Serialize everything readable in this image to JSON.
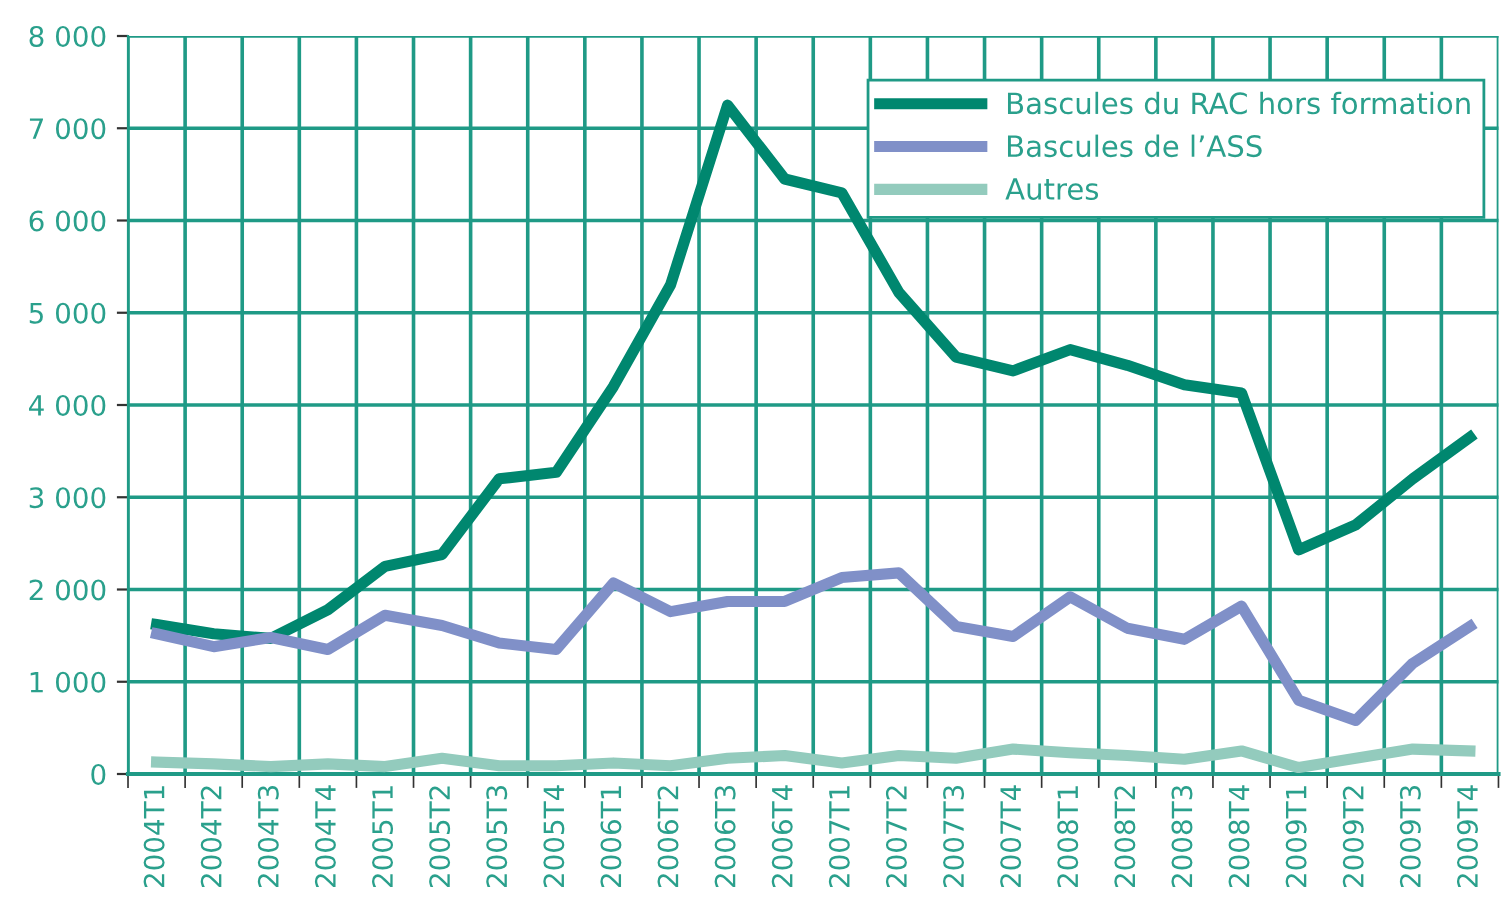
{
  "chart_data": {
    "type": "line",
    "categories": [
      "2004T1",
      "2004T2",
      "2004T3",
      "2004T4",
      "2005T1",
      "2005T2",
      "2005T3",
      "2005T4",
      "2006T1",
      "2006T2",
      "2006T3",
      "2006T4",
      "2007T1",
      "2007T2",
      "2007T3",
      "2007T4",
      "2008T1",
      "2008T2",
      "2008T3",
      "2008T4",
      "2009T1",
      "2009T2",
      "2009T3",
      "2009T4"
    ],
    "series": [
      {
        "name": "Bascules du RAC hors formation",
        "color": "#00876f",
        "values": [
          1620,
          1520,
          1470,
          1780,
          2250,
          2380,
          3200,
          3270,
          4200,
          5300,
          7250,
          6450,
          6300,
          5220,
          4520,
          4370,
          4600,
          4430,
          4220,
          4130,
          2430,
          2700,
          3200,
          3650
        ]
      },
      {
        "name": "Bascules de l’ASS",
        "color": "#8090c8",
        "values": [
          1520,
          1380,
          1480,
          1350,
          1720,
          1610,
          1420,
          1350,
          2070,
          1760,
          1870,
          1870,
          2130,
          2180,
          1600,
          1490,
          1920,
          1580,
          1460,
          1820,
          800,
          580,
          1200,
          1600
        ]
      },
      {
        "name": "Autres",
        "color": "#93cbbd",
        "values": [
          130,
          110,
          80,
          110,
          80,
          170,
          90,
          90,
          120,
          90,
          170,
          200,
          120,
          200,
          170,
          270,
          230,
          200,
          160,
          250,
          70,
          170,
          270,
          250
        ]
      }
    ],
    "ylim": [
      0,
      8000
    ],
    "yticks": [
      0,
      {
        "value": 1000,
        "label": "1 000"
      },
      {
        "value": 2000,
        "label": "2 000"
      },
      {
        "value": 3000,
        "label": "3 000"
      },
      {
        "value": 4000,
        "label": "4 000"
      },
      {
        "value": 5000,
        "label": "5 000"
      },
      {
        "value": 6000,
        "label": "6 000"
      },
      {
        "value": 7000,
        "label": "7 000"
      },
      {
        "value": 8000,
        "label": "8 000"
      }
    ],
    "grid": true,
    "legend": "top right",
    "line_style": "solid",
    "marker": "none"
  }
}
